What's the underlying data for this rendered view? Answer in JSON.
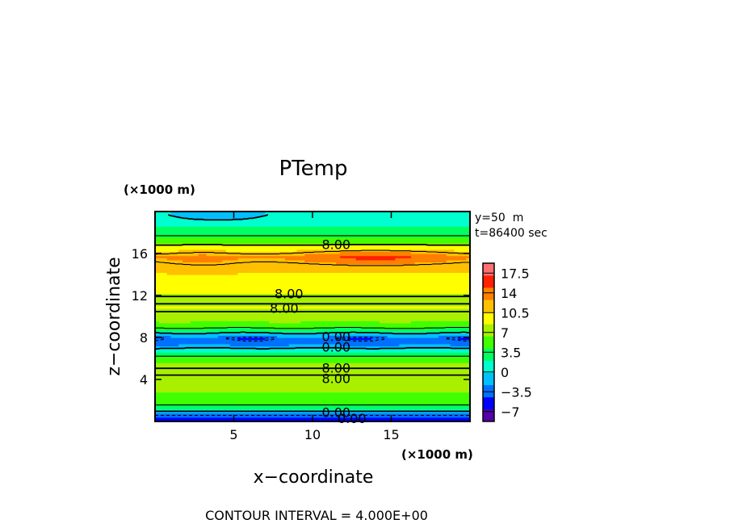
{
  "chart_data": {
    "type": "heatmap",
    "title": "PTemp",
    "xlabel": "x−coordinate",
    "ylabel": "z−coordinate",
    "x_unit": "(×1000 m)",
    "y_unit": "(×1000 m)",
    "xlim": [
      0,
      20
    ],
    "ylim": [
      0,
      20
    ],
    "x_ticks": [
      5,
      10,
      15
    ],
    "y_ticks": [
      4,
      8,
      12,
      16
    ],
    "annotations": [
      "y=50  m",
      "t=86400 sec"
    ],
    "footer": "CONTOUR INTERVAL = 4.000E+00",
    "colorbar": {
      "labels": [
        "17.5",
        "14",
        "10.5",
        "7",
        "3.5",
        "0",
        "−3.5",
        "−7"
      ],
      "levels": [
        -7,
        -3.5,
        0,
        3.5,
        7,
        10.5,
        14,
        17.5
      ],
      "vmin": -8.75,
      "vmax": 19.25,
      "colors": [
        "#5500aa",
        "#0000ff",
        "#0070ff",
        "#00c0ff",
        "#00ffd0",
        "#00ff60",
        "#40ff00",
        "#a8f000",
        "#ffff00",
        "#ffc000",
        "#ff8000",
        "#ff2000",
        "#ff7070"
      ]
    },
    "profile": [
      {
        "z": 0.3,
        "v": -6
      },
      {
        "z": 0.8,
        "v": -2
      },
      {
        "z": 1.2,
        "v": 3
      },
      {
        "z": 2.0,
        "v": 5.5
      },
      {
        "z": 3.0,
        "v": 6.5
      },
      {
        "z": 4.0,
        "v": 7.5
      },
      {
        "z": 4.8,
        "v": 8.5
      },
      {
        "z": 5.5,
        "v": 7
      },
      {
        "z": 6.2,
        "v": 4
      },
      {
        "z": 6.8,
        "v": 1
      },
      {
        "z": 7.4,
        "v": -3
      },
      {
        "z": 7.9,
        "v": -4
      },
      {
        "z": 8.4,
        "v": 0
      },
      {
        "z": 9.0,
        "v": 5
      },
      {
        "z": 10.0,
        "v": 7.5
      },
      {
        "z": 10.9,
        "v": 8.5
      },
      {
        "z": 11.5,
        "v": 7.5
      },
      {
        "z": 12.3,
        "v": 8.5
      },
      {
        "z": 13.5,
        "v": 10
      },
      {
        "z": 15.0,
        "v": 11.5
      },
      {
        "z": 15.7,
        "v": 12.5
      },
      {
        "z": 16.6,
        "v": 9
      },
      {
        "z": 17.3,
        "v": 5
      },
      {
        "z": 18.3,
        "v": 2.5
      },
      {
        "z": 19.0,
        "v": 1
      },
      {
        "z": 20.0,
        "v": 0.5
      }
    ],
    "contour_labels": [
      {
        "text": "8.00",
        "x": 11.5,
        "y": 16.9
      },
      {
        "text": "8.00",
        "x": 8.5,
        "y": 12.2
      },
      {
        "text": "8.00",
        "x": 8.2,
        "y": 10.8
      },
      {
        "text": "0.00",
        "x": 11.5,
        "y": 8.1
      },
      {
        "text": "0.00",
        "x": 11.5,
        "y": 7.1
      },
      {
        "text": "8.00",
        "x": 11.5,
        "y": 5.1
      },
      {
        "text": "8.00",
        "x": 11.5,
        "y": 4.1
      },
      {
        "text": "0.00",
        "x": 11.5,
        "y": 0.9
      },
      {
        "text": "0.00",
        "x": 12.5,
        "y": 0.3
      }
    ]
  }
}
